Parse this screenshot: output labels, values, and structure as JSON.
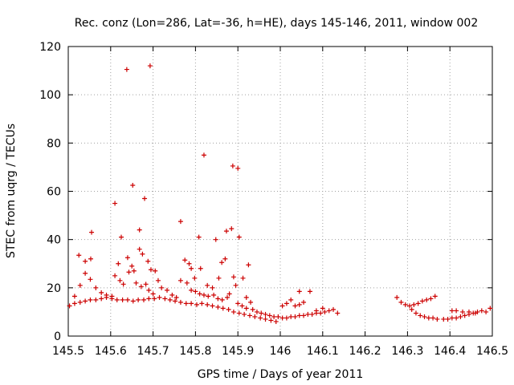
{
  "chart_data": {
    "type": "scatter",
    "title": "Rec. conz (Lon=286, Lat=-36, h=HE), days 145-146, 2011, window 002",
    "xlabel": "GPS time / Days of year 2011",
    "ylabel": "STEC from uqrg / TECUs",
    "xlim": [
      145.5,
      146.5
    ],
    "ylim": [
      0,
      120
    ],
    "xticks": [
      145.5,
      145.6,
      145.7,
      145.8,
      145.9,
      146,
      146.1,
      146.2,
      146.3,
      146.4,
      146.5
    ],
    "xtick_labels": [
      "145.5",
      "145.6",
      "145.7",
      "145.8",
      "145.9",
      "146",
      "146.1",
      "146.2",
      "146.3",
      "146.4",
      "146.5"
    ],
    "yticks": [
      0,
      20,
      40,
      60,
      80,
      100,
      120
    ],
    "ytick_labels": [
      "0",
      "20",
      "40",
      "60",
      "80",
      "100",
      "120"
    ],
    "grid": true,
    "marker": "+",
    "color": "#cc0000",
    "series": [
      {
        "points": [
          [
            145.503,
            12.5
          ],
          [
            145.515,
            13.5
          ],
          [
            145.528,
            14.0
          ],
          [
            145.54,
            14.5
          ],
          [
            145.552,
            15.0
          ],
          [
            145.565,
            15.0
          ],
          [
            145.578,
            15.5
          ],
          [
            145.59,
            16.0
          ],
          [
            145.603,
            15.5
          ],
          [
            145.615,
            15.0
          ],
          [
            145.628,
            15.0
          ],
          [
            145.64,
            15.0
          ],
          [
            145.653,
            14.5
          ],
          [
            145.665,
            15.0
          ],
          [
            145.678,
            15.0
          ],
          [
            145.69,
            15.5
          ],
          [
            145.703,
            15.5
          ],
          [
            145.715,
            16.0
          ],
          [
            145.728,
            15.5
          ],
          [
            145.74,
            15.0
          ],
          [
            145.752,
            14.5
          ],
          [
            145.765,
            14.0
          ],
          [
            145.778,
            13.5
          ],
          [
            145.79,
            13.5
          ],
          [
            145.803,
            13.0
          ],
          [
            145.815,
            13.5
          ],
          [
            145.828,
            13.0
          ],
          [
            145.84,
            12.5
          ],
          [
            145.853,
            12.0
          ],
          [
            145.865,
            11.5
          ],
          [
            145.878,
            11.0
          ],
          [
            145.89,
            10.0
          ],
          [
            145.903,
            9.5
          ],
          [
            145.915,
            9.0
          ],
          [
            145.928,
            8.5
          ],
          [
            145.94,
            8.0
          ],
          [
            145.953,
            7.5
          ],
          [
            145.965,
            7.0
          ],
          [
            145.978,
            6.5
          ],
          [
            145.99,
            6.0
          ],
          [
            145.515,
            16.5
          ],
          [
            145.528,
            21.0
          ],
          [
            145.54,
            26.0
          ],
          [
            145.552,
            23.5
          ],
          [
            145.565,
            20.0
          ],
          [
            145.578,
            18.0
          ],
          [
            145.59,
            17.0
          ],
          [
            145.603,
            16.5
          ],
          [
            145.525,
            33.5
          ],
          [
            145.54,
            31.0
          ],
          [
            145.553,
            32.0
          ],
          [
            145.555,
            43.0
          ],
          [
            145.61,
            55.0
          ],
          [
            145.625,
            41.0
          ],
          [
            145.638,
            110.5
          ],
          [
            145.652,
            62.5
          ],
          [
            145.668,
            44.0
          ],
          [
            145.68,
            57.0
          ],
          [
            145.693,
            112.0
          ],
          [
            145.61,
            25.0
          ],
          [
            145.622,
            23.0
          ],
          [
            145.63,
            21.5
          ],
          [
            145.64,
            32.5
          ],
          [
            145.65,
            29.0
          ],
          [
            145.655,
            27.0
          ],
          [
            145.668,
            36.0
          ],
          [
            145.675,
            34.0
          ],
          [
            145.688,
            31.0
          ],
          [
            145.695,
            27.5
          ],
          [
            145.705,
            27.0
          ],
          [
            145.712,
            23.0
          ],
          [
            145.618,
            30.0
          ],
          [
            145.643,
            26.5
          ],
          [
            145.66,
            22.0
          ],
          [
            145.672,
            20.5
          ],
          [
            145.683,
            21.5
          ],
          [
            145.69,
            19.0
          ],
          [
            145.7,
            17.5
          ],
          [
            145.72,
            20.0
          ],
          [
            145.733,
            19.0
          ],
          [
            145.745,
            17.0
          ],
          [
            145.755,
            16.0
          ],
          [
            145.765,
            23.0
          ],
          [
            145.765,
            47.5
          ],
          [
            145.775,
            31.5
          ],
          [
            145.785,
            30.0
          ],
          [
            145.79,
            28.0
          ],
          [
            145.798,
            24.0
          ],
          [
            145.808,
            41.0
          ],
          [
            145.812,
            28.0
          ],
          [
            145.82,
            75.0
          ],
          [
            145.828,
            21.0
          ],
          [
            145.84,
            20.0
          ],
          [
            145.848,
            40.0
          ],
          [
            145.855,
            24.0
          ],
          [
            145.862,
            30.5
          ],
          [
            145.87,
            32.0
          ],
          [
            145.873,
            43.5
          ],
          [
            145.885,
            44.5
          ],
          [
            145.888,
            70.5
          ],
          [
            145.9,
            69.5
          ],
          [
            145.903,
            41.0
          ],
          [
            145.89,
            24.5
          ],
          [
            145.895,
            21.0
          ],
          [
            145.912,
            24.0
          ],
          [
            145.92,
            16.0
          ],
          [
            145.925,
            29.5
          ],
          [
            145.93,
            14.0
          ],
          [
            145.78,
            22.0
          ],
          [
            145.79,
            19.0
          ],
          [
            145.8,
            18.5
          ],
          [
            145.81,
            17.5
          ],
          [
            145.82,
            17.0
          ],
          [
            145.83,
            16.5
          ],
          [
            145.843,
            17.0
          ],
          [
            145.853,
            15.5
          ],
          [
            145.863,
            15.0
          ],
          [
            145.875,
            16.0
          ],
          [
            145.88,
            17.5
          ],
          [
            145.9,
            13.5
          ],
          [
            145.91,
            12.5
          ],
          [
            145.92,
            11.5
          ],
          [
            145.935,
            11.0
          ],
          [
            145.945,
            10.0
          ],
          [
            145.955,
            9.5
          ],
          [
            145.965,
            9.0
          ],
          [
            145.975,
            8.5
          ],
          [
            145.985,
            8.0
          ],
          [
            145.995,
            8.0
          ],
          [
            146.005,
            7.5
          ],
          [
            146.015,
            7.5
          ],
          [
            146.025,
            8.0
          ],
          [
            146.035,
            8.0
          ],
          [
            146.045,
            8.5
          ],
          [
            146.055,
            8.5
          ],
          [
            146.065,
            9.0
          ],
          [
            146.075,
            9.0
          ],
          [
            146.085,
            9.5
          ],
          [
            146.095,
            9.5
          ],
          [
            146.105,
            10.0
          ],
          [
            146.115,
            10.5
          ],
          [
            146.125,
            11.0
          ],
          [
            146.135,
            9.5
          ],
          [
            146.005,
            12.5
          ],
          [
            146.015,
            13.5
          ],
          [
            146.025,
            15.0
          ],
          [
            146.035,
            12.5
          ],
          [
            146.045,
            13.0
          ],
          [
            146.055,
            14.0
          ],
          [
            146.045,
            18.5
          ],
          [
            146.07,
            18.5
          ],
          [
            146.085,
            10.5
          ],
          [
            146.1,
            11.5
          ],
          [
            146.275,
            16.0
          ],
          [
            146.285,
            14.0
          ],
          [
            146.295,
            13.0
          ],
          [
            146.305,
            12.5
          ],
          [
            146.315,
            13.0
          ],
          [
            146.325,
            13.5
          ],
          [
            146.335,
            14.5
          ],
          [
            146.345,
            15.0
          ],
          [
            146.355,
            15.5
          ],
          [
            146.365,
            16.5
          ],
          [
            146.31,
            11.0
          ],
          [
            146.32,
            9.5
          ],
          [
            146.33,
            8.5
          ],
          [
            146.34,
            8.0
          ],
          [
            146.35,
            7.5
          ],
          [
            146.36,
            7.5
          ],
          [
            146.37,
            7.0
          ],
          [
            146.385,
            7.0
          ],
          [
            146.395,
            7.0
          ],
          [
            146.405,
            7.5
          ],
          [
            146.415,
            7.5
          ],
          [
            146.425,
            8.0
          ],
          [
            146.435,
            8.5
          ],
          [
            146.445,
            9.0
          ],
          [
            146.455,
            9.5
          ],
          [
            146.465,
            10.0
          ],
          [
            146.475,
            10.5
          ],
          [
            146.485,
            10.0
          ],
          [
            146.495,
            11.5
          ],
          [
            146.405,
            10.5
          ],
          [
            146.415,
            10.5
          ],
          [
            146.43,
            10.0
          ],
          [
            146.445,
            10.0
          ],
          [
            146.46,
            9.5
          ]
        ]
      }
    ]
  }
}
